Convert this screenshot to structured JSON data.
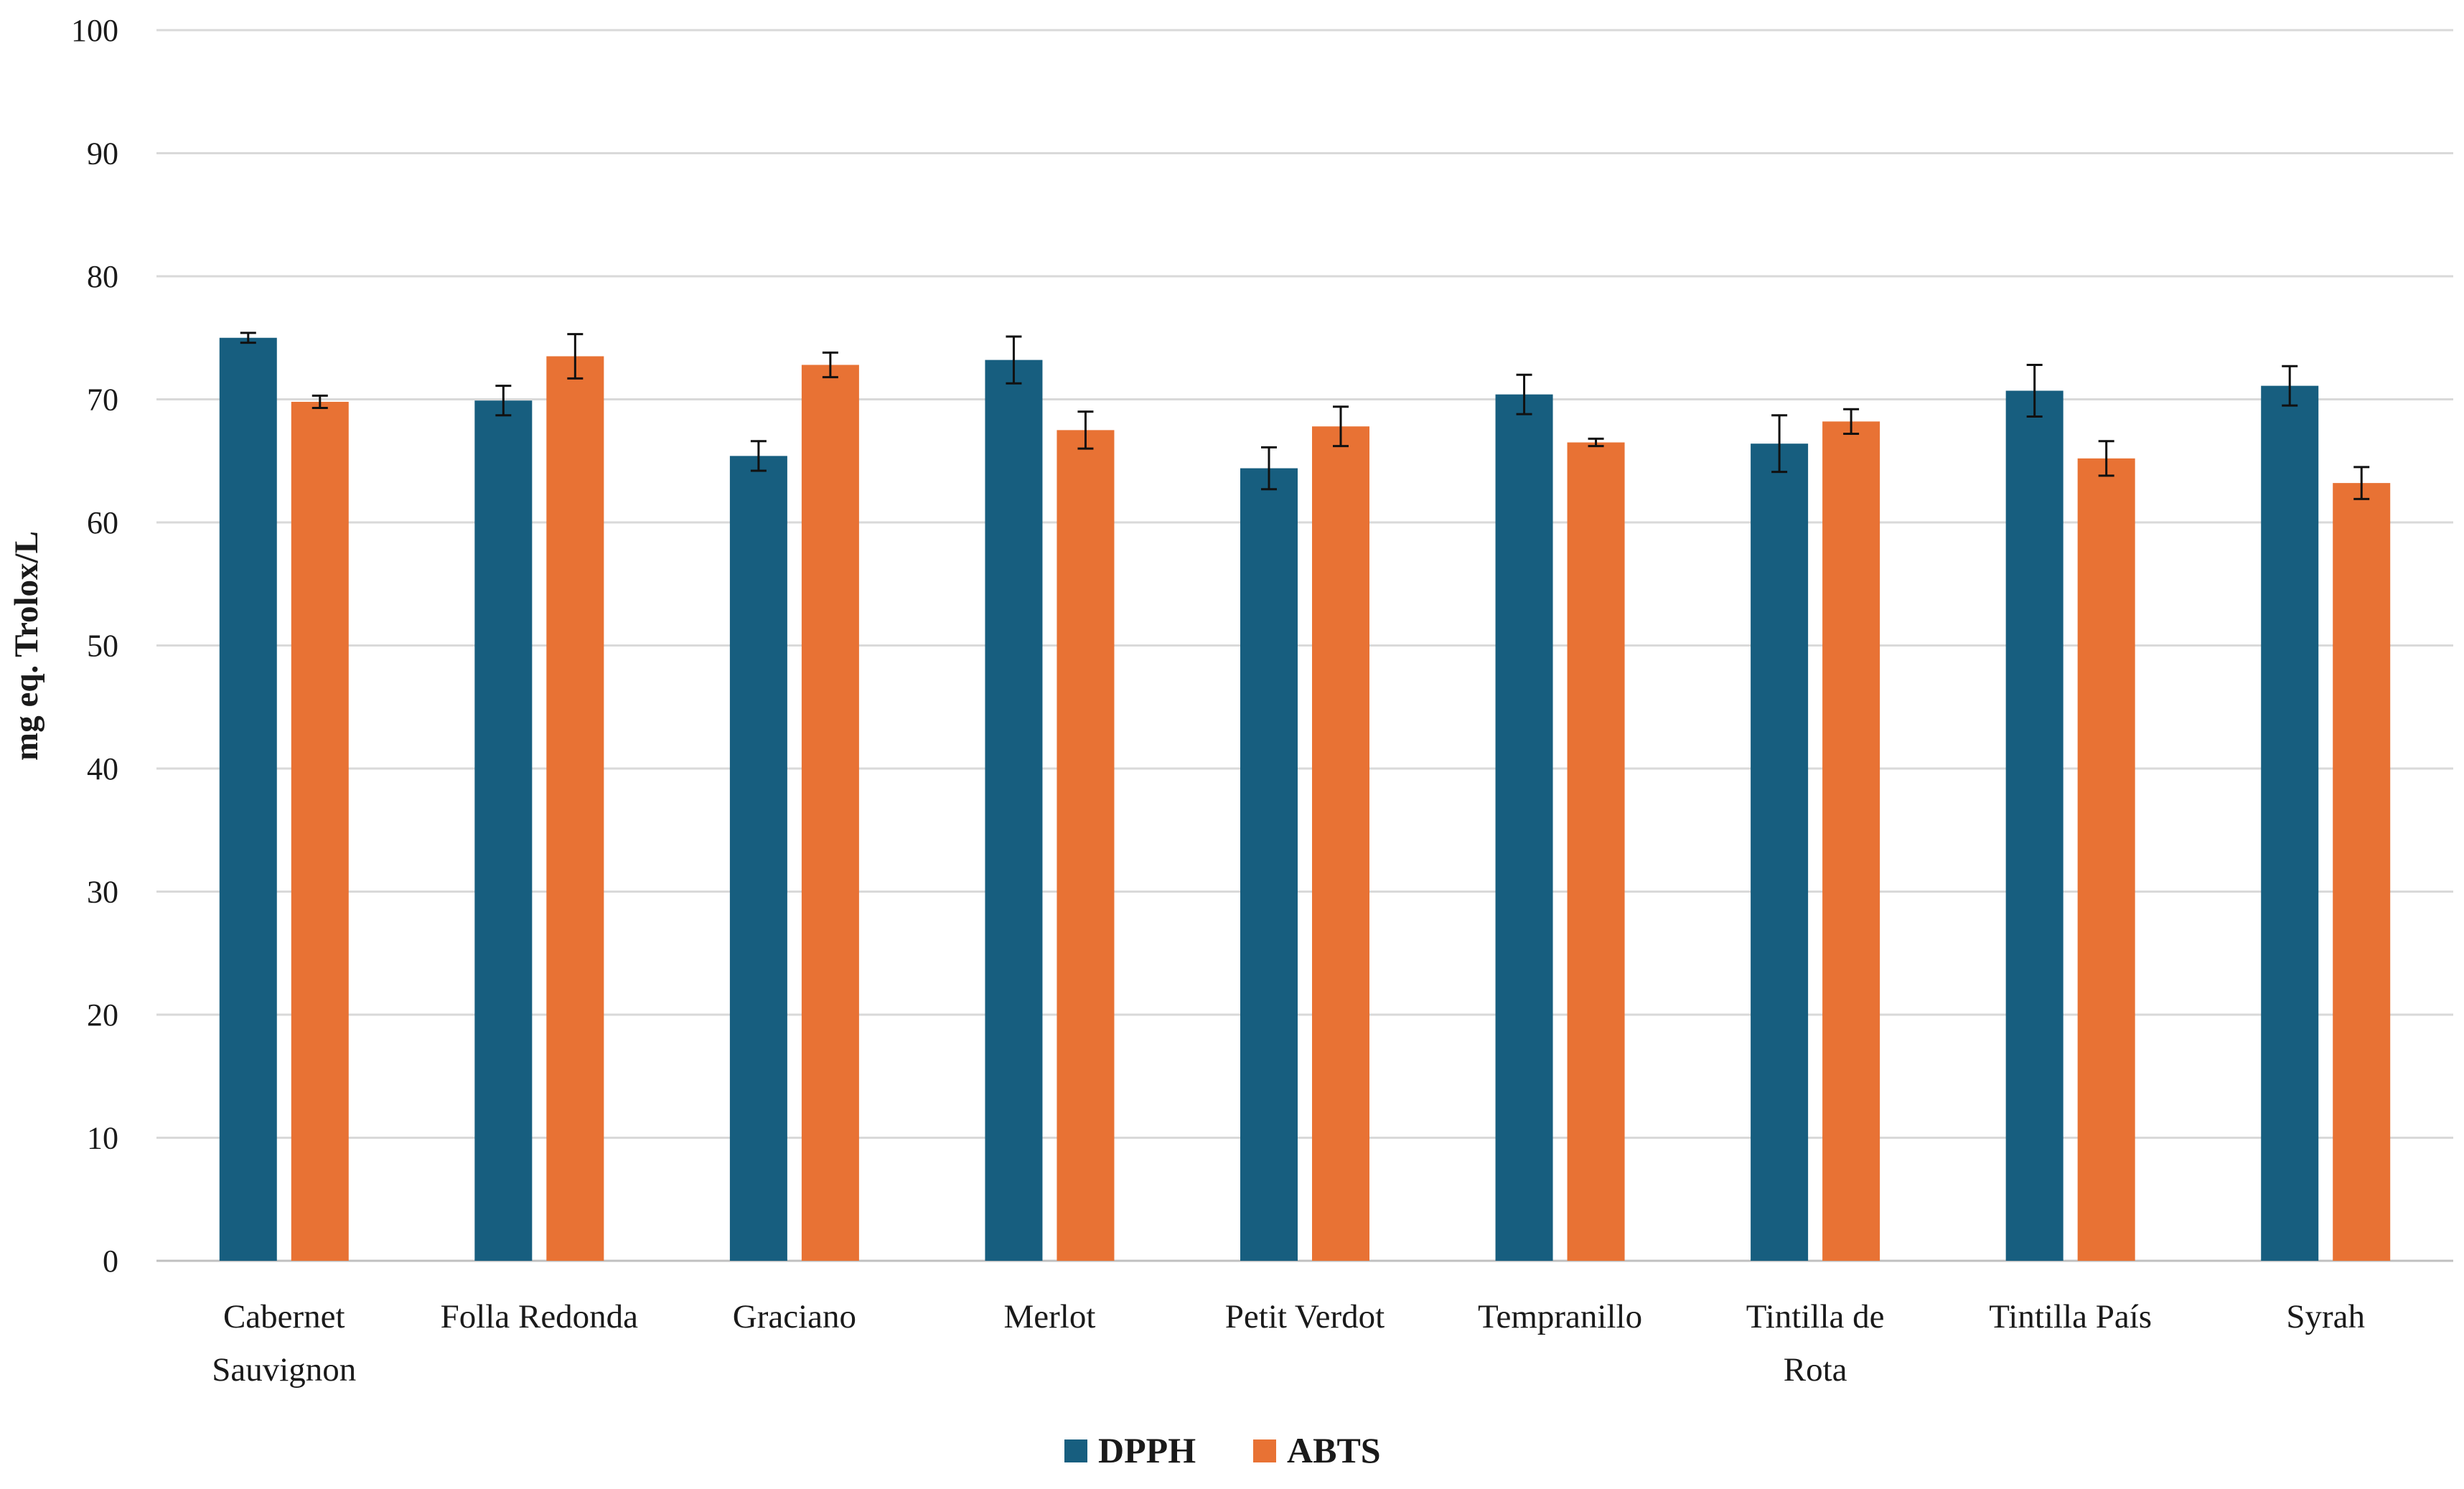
{
  "chart_data": {
    "type": "bar",
    "title": "",
    "xlabel": "",
    "ylabel": "mg eq. Trolox/L",
    "ylim": [
      0,
      100
    ],
    "yticks": [
      0,
      10,
      20,
      30,
      40,
      50,
      60,
      70,
      80,
      90,
      100
    ],
    "grid": true,
    "legend_position": "bottom-center",
    "categories": [
      [
        "Cabernet",
        "Sauvignon"
      ],
      [
        "Folla Redonda"
      ],
      [
        "Graciano"
      ],
      [
        "Merlot"
      ],
      [
        "Petit Verdot"
      ],
      [
        "Tempranillo"
      ],
      [
        "Tintilla de",
        "Rota"
      ],
      [
        "Tintilla País"
      ],
      [
        "Syrah"
      ]
    ],
    "series": [
      {
        "name": "DPPH",
        "color": "#175e7f",
        "values": [
          75.0,
          69.9,
          65.4,
          73.2,
          64.4,
          70.4,
          66.4,
          70.7,
          71.1
        ],
        "errors": [
          0.4,
          1.2,
          1.2,
          1.9,
          1.7,
          1.6,
          2.3,
          2.1,
          1.6
        ]
      },
      {
        "name": "ABTS",
        "color": "#e87234",
        "values": [
          69.8,
          73.5,
          72.8,
          67.5,
          67.8,
          66.5,
          68.2,
          65.2,
          63.2
        ],
        "errors": [
          0.5,
          1.8,
          1.0,
          1.5,
          1.6,
          0.3,
          1.0,
          1.4,
          1.3
        ]
      }
    ]
  }
}
